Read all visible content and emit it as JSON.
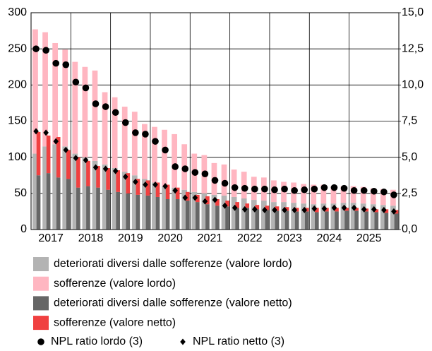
{
  "chart_data": {
    "type": "bar",
    "categories": [
      "2017",
      null,
      null,
      null,
      "2018",
      null,
      null,
      null,
      "2019",
      null,
      null,
      null,
      "2020",
      null,
      null,
      null,
      "2021",
      null,
      null,
      null,
      "2022",
      null,
      null,
      null,
      "2023",
      null,
      null,
      null,
      "2024",
      null,
      null,
      null,
      "2025",
      null,
      null,
      null,
      null
    ],
    "series": [
      {
        "name": "deteriorati diversi dalle sofferenze (valore lordo)",
        "color": "#b3b3b3",
        "stack": "lordo",
        "values": [
          105,
          115,
          118,
          115,
          105,
          100,
          95,
          90,
          85,
          80,
          75,
          70,
          65,
          60,
          58,
          55,
          52,
          50,
          48,
          47,
          45,
          43,
          41,
          40,
          38,
          38,
          37,
          36,
          35,
          36,
          36,
          37,
          37,
          36,
          35,
          34,
          33
        ]
      },
      {
        "name": "sofferenze (valore lordo)",
        "color": "#ffb6c1",
        "stack": "lordo",
        "values": [
          172,
          158,
          140,
          134,
          127,
          125,
          125,
          100,
          98,
          90,
          88,
          76,
          77,
          78,
          74,
          63,
          53,
          53,
          44,
          43,
          38,
          37,
          32,
          32,
          30,
          28,
          28,
          27,
          27,
          26,
          24,
          23,
          23,
          23,
          22,
          22,
          22
        ]
      },
      {
        "name": "deteriorati diversi dalle sofferenze (valore netto)",
        "color": "#666666",
        "stack": "netto",
        "values": [
          75,
          78,
          72,
          70,
          58,
          60,
          58,
          55,
          52,
          50,
          48,
          47,
          45,
          42,
          42,
          40,
          38,
          35,
          33,
          32,
          30,
          30,
          28,
          27,
          26,
          26,
          25,
          25,
          24,
          25,
          25,
          26,
          26,
          25,
          24,
          23,
          22
        ]
      },
      {
        "name": "sofferenze (valore netto)",
        "color": "#f04040",
        "stack": "netto",
        "values": [
          60,
          52,
          56,
          40,
          42,
          35,
          30,
          30,
          30,
          28,
          22,
          21,
          20,
          20,
          16,
          12,
          10,
          11,
          9,
          8,
          8,
          6,
          6,
          6,
          6,
          5,
          5,
          5,
          6,
          5,
          5,
          4,
          4,
          4,
          4,
          5,
          5
        ]
      },
      {
        "name": "NPL ratio lordo (3)",
        "color": "#000000",
        "axis": "y2",
        "marker": "circle",
        "values": [
          12.5,
          12.4,
          11.5,
          11.4,
          10.2,
          9.8,
          8.7,
          8.5,
          8.1,
          7.4,
          6.7,
          6.6,
          6.1,
          5.5,
          4.35,
          4.2,
          3.95,
          3.85,
          3.4,
          3.2,
          2.9,
          2.85,
          2.8,
          2.8,
          2.75,
          2.8,
          2.7,
          2.75,
          2.8,
          2.9,
          2.9,
          2.85,
          2.7,
          2.7,
          2.65,
          2.6,
          2.4
        ]
      },
      {
        "name": "NPL ratio netto (3)",
        "color": "#000000",
        "axis": "y2",
        "marker": "diamond",
        "values": [
          6.8,
          6.7,
          6.1,
          5.5,
          4.95,
          4.8,
          4.3,
          4.2,
          4.05,
          3.65,
          3.3,
          3.1,
          3.1,
          3.0,
          2.7,
          2.2,
          2.2,
          1.95,
          2.05,
          1.65,
          1.5,
          1.4,
          1.4,
          1.35,
          1.35,
          1.35,
          1.35,
          1.35,
          1.45,
          1.45,
          1.5,
          1.5,
          1.5,
          1.4,
          1.4,
          1.35,
          1.25
        ]
      }
    ],
    "ylim": [
      0,
      300
    ],
    "yticks": [
      0,
      50,
      100,
      150,
      200,
      250,
      300
    ],
    "y2lim": [
      0,
      15
    ],
    "y2ticks": [
      {
        "value": 0,
        "label": "0,0"
      },
      {
        "value": 2.5,
        "label": "2,5"
      },
      {
        "value": 5,
        "label": "5,0"
      },
      {
        "value": 7.5,
        "label": "7,5"
      },
      {
        "value": 10,
        "label": "10,0"
      },
      {
        "value": 12.5,
        "label": "12,5"
      },
      {
        "value": 15,
        "label": "15,0"
      }
    ],
    "grid": true,
    "legend": "bottom"
  }
}
